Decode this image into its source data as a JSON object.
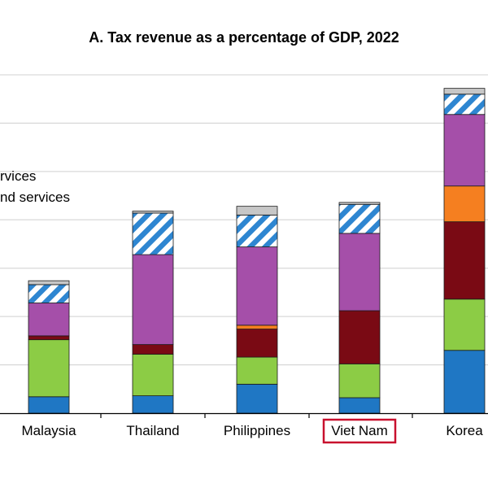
{
  "chart_data": {
    "type": "bar",
    "stacked": true,
    "title": "A. Tax revenue as a percentage of GDP, 2022",
    "categories": [
      "Malaysia",
      "Thailand",
      "Philippines",
      "Viet Nam",
      "Korea"
    ],
    "highlighted_category": "Viet Nam",
    "ylim": [
      0,
      35
    ],
    "y_gridline_step": 5,
    "grid": true,
    "legend_visible_fragments": [
      "rvices",
      "nd services"
    ],
    "series": [
      {
        "color": "#1f77c4",
        "pattern": "solid",
        "values": [
          1.7,
          1.8,
          3.0,
          1.6,
          6.5
        ]
      },
      {
        "color": "#8ccc45",
        "pattern": "solid",
        "values": [
          5.9,
          4.3,
          2.8,
          3.5,
          5.3
        ]
      },
      {
        "color": "#7a0a14",
        "pattern": "solid",
        "values": [
          0.4,
          1.0,
          2.9,
          5.5,
          8.0
        ]
      },
      {
        "color": "#f57f20",
        "pattern": "solid",
        "values": [
          0.0,
          0.0,
          0.4,
          0.0,
          3.7
        ]
      },
      {
        "color": "#a54fa9",
        "pattern": "solid",
        "values": [
          3.4,
          9.3,
          8.1,
          8.0,
          7.4
        ]
      },
      {
        "color": "#2e86d1",
        "pattern": "striped",
        "values": [
          1.9,
          4.3,
          3.3,
          3.0,
          2.1
        ]
      },
      {
        "color": "#c7c7c7",
        "pattern": "solid",
        "values": [
          0.4,
          0.2,
          0.9,
          0.2,
          0.6
        ]
      }
    ]
  }
}
